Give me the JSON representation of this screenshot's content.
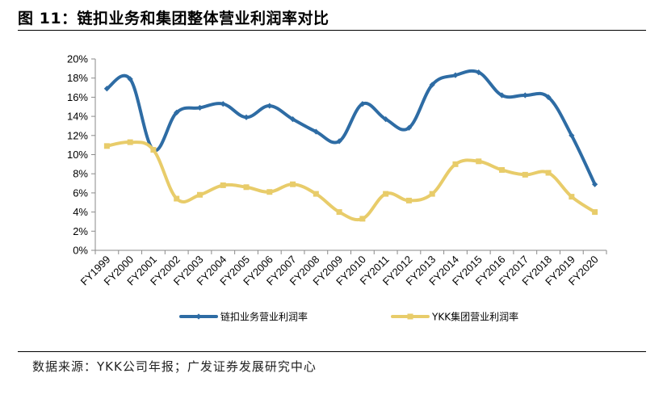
{
  "header": {
    "title": "图 11：链扣业务和集团整体营业利润率对比"
  },
  "footer": {
    "source": "数据来源：YKK公司年报；广发证券发展研究中心"
  },
  "chart_data": {
    "type": "line",
    "categories": [
      "FY1999",
      "FY2000",
      "FY2001",
      "FY2002",
      "FY2003",
      "FY2004",
      "FY2005",
      "FY2006",
      "FY2007",
      "FY2008",
      "FY2009",
      "FY2010",
      "FY2011",
      "FY2012",
      "FY2013",
      "FY2014",
      "FY2015",
      "FY2016",
      "FY2017",
      "FY2018",
      "FY2019",
      "FY2020"
    ],
    "series": [
      {
        "name": "链扣业务营业利润率",
        "color": "#2e6ca4",
        "marker": "diamond",
        "values": [
          16.9,
          17.9,
          10.5,
          14.4,
          14.9,
          15.3,
          13.9,
          15.1,
          13.7,
          12.4,
          11.4,
          15.3,
          13.7,
          12.8,
          17.3,
          18.3,
          18.6,
          16.2,
          16.2,
          16.0,
          12.0,
          6.9
        ]
      },
      {
        "name": "YKK集团营业利润率",
        "color": "#e8cc6a",
        "marker": "square",
        "values": [
          10.9,
          11.3,
          10.5,
          5.4,
          5.8,
          6.8,
          6.6,
          6.1,
          6.9,
          5.9,
          4.0,
          3.3,
          5.9,
          5.2,
          5.9,
          9.0,
          9.3,
          8.4,
          7.9,
          8.1,
          5.6,
          4.0
        ]
      }
    ],
    "yticks": [
      "0%",
      "2%",
      "4%",
      "6%",
      "8%",
      "10%",
      "12%",
      "14%",
      "16%",
      "18%",
      "20%"
    ],
    "ylim": [
      0,
      20
    ],
    "grid": false,
    "legend_position": "bottom"
  }
}
